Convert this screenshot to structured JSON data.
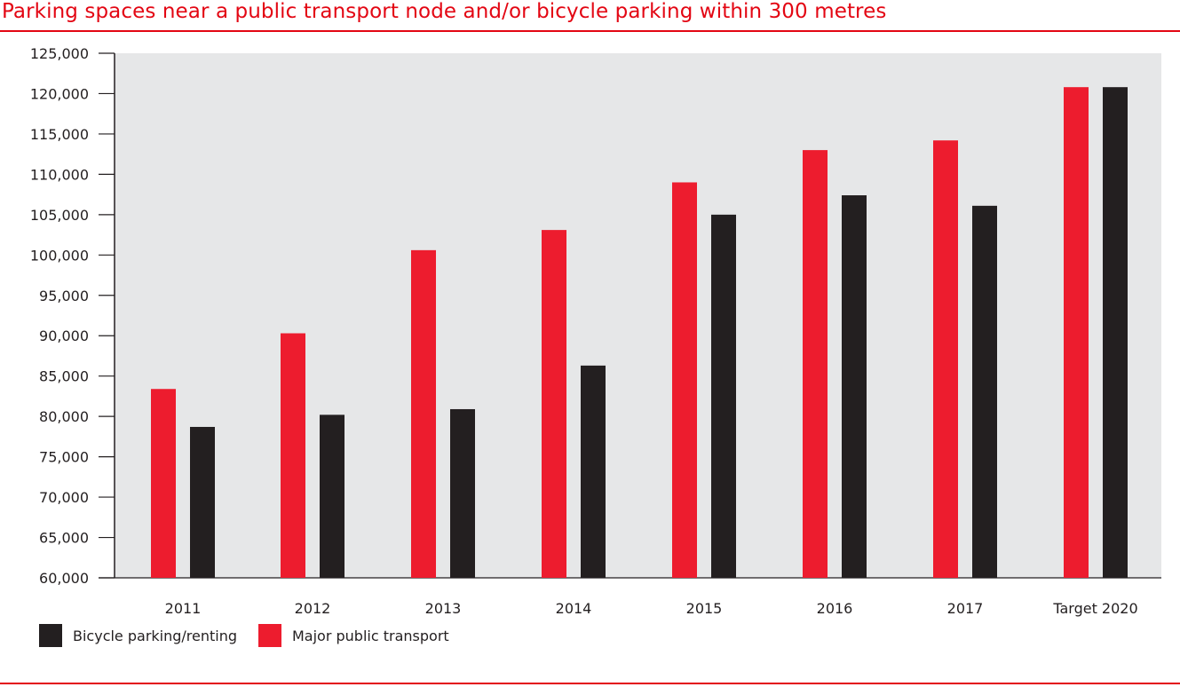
{
  "chart_data": {
    "type": "bar",
    "title": "Parking spaces near a public transport node and/or bicycle parking within 300 metres",
    "xlabel": "",
    "ylabel": "",
    "categories": [
      "2011",
      "2012",
      "2013",
      "2014",
      "2015",
      "2016",
      "2017",
      "Target 2020"
    ],
    "series": [
      {
        "name": "Major public transport",
        "color": "#ed1c2e",
        "values": [
          83400,
          90300,
          100600,
          103100,
          109000,
          113000,
          114200,
          120800
        ]
      },
      {
        "name": "Bicycle parking/renting",
        "color": "#231f20",
        "values": [
          78700,
          80200,
          80900,
          86300,
          105000,
          107400,
          106100,
          120800
        ]
      }
    ],
    "ylim": [
      60000,
      125000
    ],
    "yticks": [
      60000,
      65000,
      70000,
      75000,
      80000,
      85000,
      90000,
      95000,
      100000,
      105000,
      110000,
      115000,
      120000,
      125000
    ],
    "ytick_labels": [
      "60,000",
      "65,000",
      "70,000",
      "75,000",
      "80,000",
      "85,000",
      "90,000",
      "95,000",
      "100,000",
      "105,000",
      "110,000",
      "115,000",
      "120,000",
      "125,000"
    ],
    "grid": false,
    "legend_position": "bottom-left",
    "legend_order": [
      "Bicycle parking/renting",
      "Major public transport"
    ],
    "plot_background": "#e6e7e8",
    "accent_color": "#e30613"
  }
}
